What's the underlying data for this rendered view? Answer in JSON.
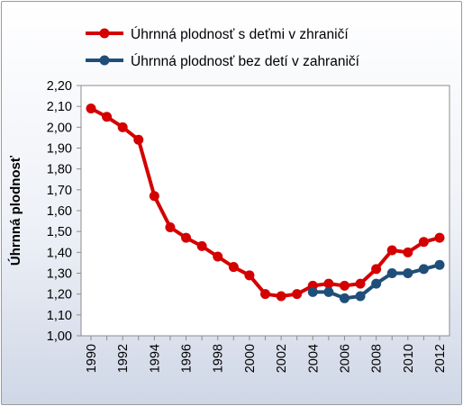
{
  "chart_data": {
    "type": "line",
    "title": "",
    "xlabel": "",
    "ylabel": "Úhrnná plodnosť",
    "ylim": [
      1.0,
      2.2
    ],
    "y_ticks": [
      "1,00",
      "1,10",
      "1,20",
      "1,30",
      "1,40",
      "1,50",
      "1,60",
      "1,70",
      "1,80",
      "1,90",
      "2,00",
      "2,10",
      "2,20"
    ],
    "x_range": [
      1990,
      2012
    ],
    "x_ticks": [
      "1990",
      "1992",
      "1994",
      "1996",
      "1998",
      "2000",
      "2002",
      "2004",
      "2006",
      "2008",
      "2010",
      "2012"
    ],
    "grid": "none",
    "legend": "top",
    "series": [
      {
        "name": "Úhrnná plodnosť s deťmi v zhraničí",
        "color": "#d40000",
        "x": [
          1990,
          1991,
          1992,
          1993,
          1994,
          1995,
          1996,
          1997,
          1998,
          1999,
          2000,
          2001,
          2002,
          2003,
          2004,
          2005,
          2006,
          2007,
          2008,
          2009,
          2010,
          2011,
          2012
        ],
        "values": [
          2.09,
          2.05,
          2.0,
          1.94,
          1.67,
          1.52,
          1.47,
          1.43,
          1.38,
          1.33,
          1.29,
          1.2,
          1.19,
          1.2,
          1.24,
          1.25,
          1.24,
          1.25,
          1.32,
          1.41,
          1.4,
          1.45,
          1.47
        ]
      },
      {
        "name": "Úhrnná plodnosť bez detí v zahraničí",
        "color": "#1f4e79",
        "x": [
          2004,
          2005,
          2006,
          2007,
          2008,
          2009,
          2010,
          2011,
          2012
        ],
        "values": [
          1.21,
          1.21,
          1.18,
          1.19,
          1.25,
          1.3,
          1.3,
          1.32,
          1.34
        ]
      }
    ]
  }
}
